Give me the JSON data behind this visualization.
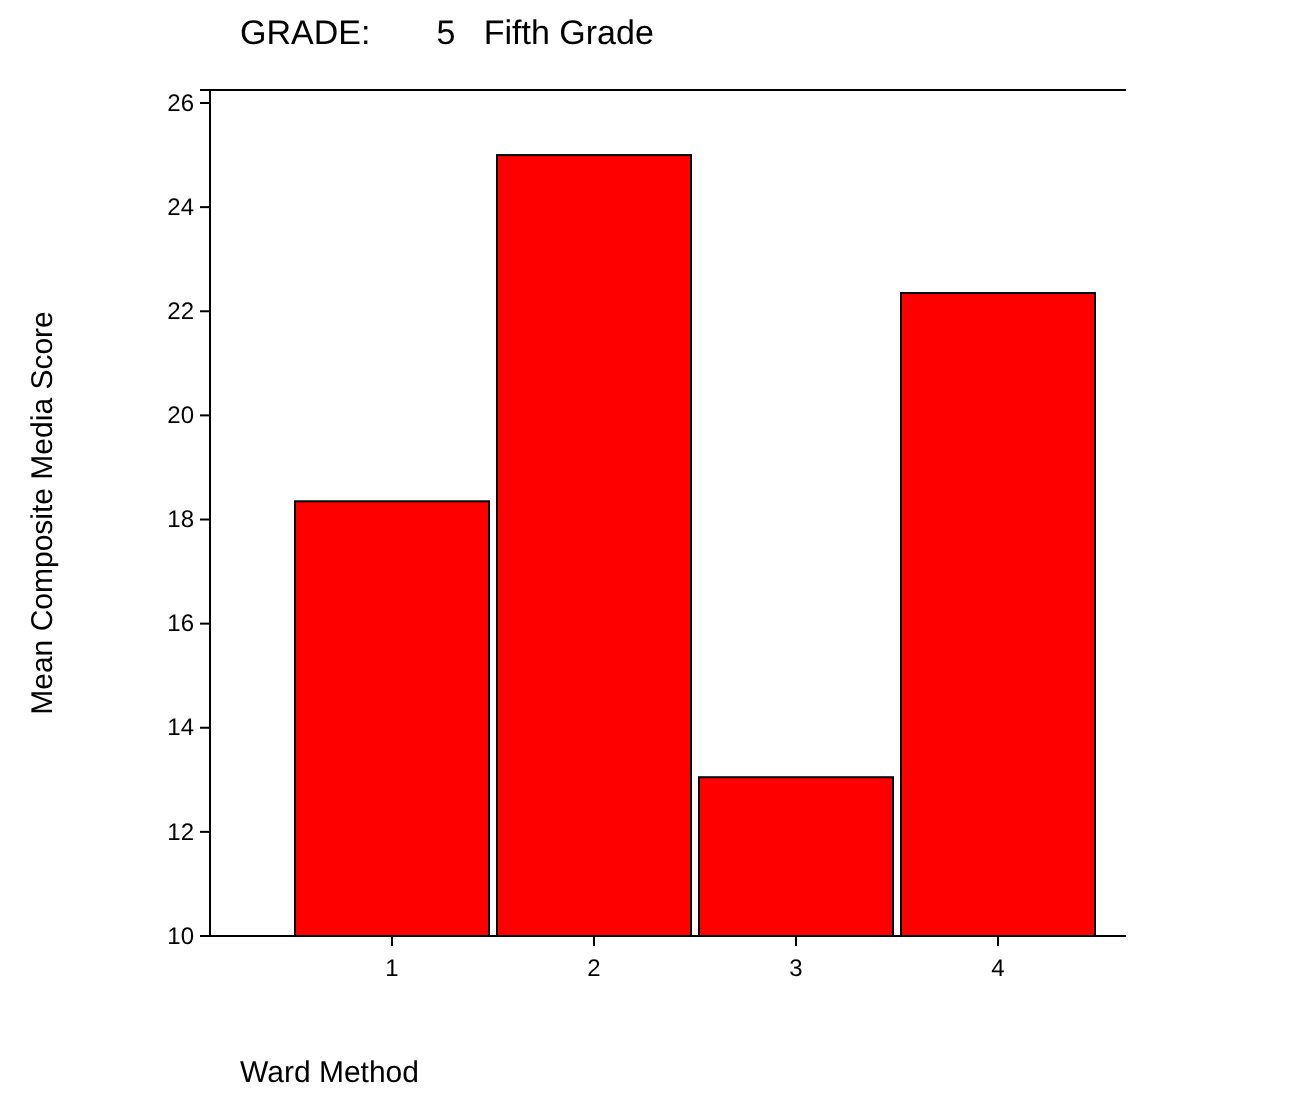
{
  "chart_data": {
    "type": "bar",
    "title": "GRADE:       5   Fifth Grade",
    "xlabel": "Ward Method",
    "ylabel": "Mean Composite Media Score",
    "categories": [
      "1",
      "2",
      "3",
      "4"
    ],
    "values": [
      18.35,
      25.0,
      13.05,
      22.35
    ],
    "color": "#ff0000",
    "ylim": [
      10,
      26.25
    ],
    "yticks": [
      10,
      12,
      14,
      16,
      18,
      20,
      22,
      24,
      26
    ],
    "grid": false
  }
}
